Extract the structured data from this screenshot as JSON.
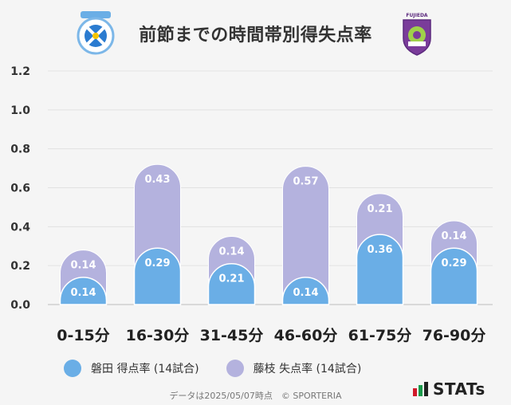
{
  "header": {
    "title": "前節までの時間帯別得失点率",
    "left_crest_icon": "jubilo-iwata-crest",
    "right_crest_icon": "fujieda-myfc-crest",
    "right_crest_text": "FUJIEDA"
  },
  "chart_data": {
    "type": "bar",
    "stacked": true,
    "categories": [
      "0-15分",
      "16-30分",
      "31-45分",
      "46-60分",
      "61-75分",
      "76-90分"
    ],
    "series": [
      {
        "name": "磐田 得点率 (14試合)",
        "color": "#6aaee6",
        "values": [
          0.14,
          0.29,
          0.21,
          0.14,
          0.36,
          0.29
        ]
      },
      {
        "name": "藤枝 失点率 (14試合)",
        "color": "#b4b2de",
        "values": [
          0.14,
          0.43,
          0.14,
          0.57,
          0.21,
          0.14
        ]
      }
    ],
    "ylim": [
      0,
      1.2
    ],
    "yticks": [
      "0.0",
      "0.2",
      "0.4",
      "0.6",
      "0.8",
      "1.0",
      "1.2"
    ],
    "grid": true,
    "legend_position": "bottom-left"
  },
  "legend": {
    "home_label": "磐田 得点率 (14試合)",
    "away_label": "藤枝 失点率 (14試合)",
    "home_color": "#6aaee6",
    "away_color": "#b4b2de"
  },
  "footer": {
    "text": "データは2025/05/07時点　© SPORTERIA"
  },
  "brand": {
    "name": "STATs"
  }
}
